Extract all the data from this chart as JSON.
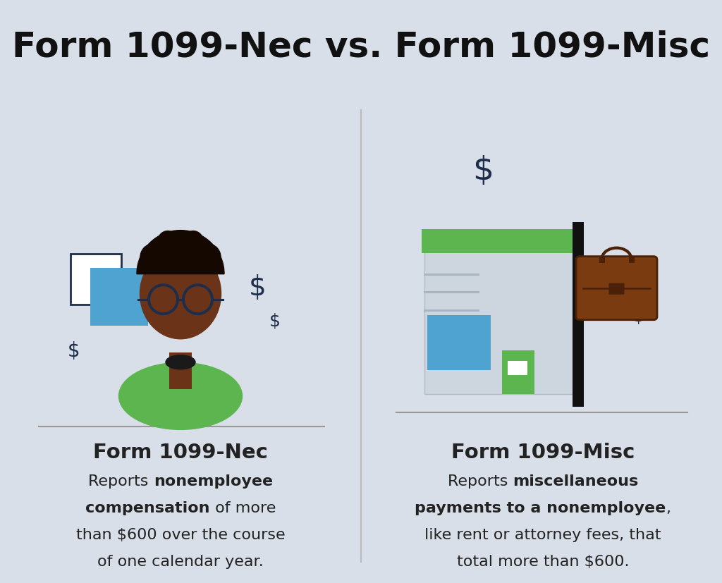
{
  "title": "Form 1099-Nec vs. Form 1099-Misc",
  "title_bg_color": "#5aaed4",
  "body_bg_color": "#d8dfe8",
  "title_fontsize": 36,
  "title_text_color": "#111111",
  "left_heading": "Form 1099-Nec",
  "right_heading": "Form 1099-Misc",
  "heading_fontsize": 21,
  "desc_fontsize": 16,
  "skin_color": "#6b3318",
  "hair_color": "#150800",
  "shirt_color": "#5db550",
  "glasses_color": "#1e2d4a",
  "square_outline_color": "#1e2d4a",
  "square_fill_color": "#4fa3d0",
  "dollar_color": "#1e2d4a",
  "green_roof_color": "#5db550",
  "building_wall_color": "#cdd5de",
  "building_line_color": "#aab5c0",
  "building_accent_color": "#4fa3d0",
  "building_door_color": "#5db550",
  "briefcase_body_color": "#7a3b10",
  "briefcase_dark_color": "#4a2008",
  "pole_color": "#111111",
  "divider_color": "#bbbbbb",
  "text_color": "#222222"
}
